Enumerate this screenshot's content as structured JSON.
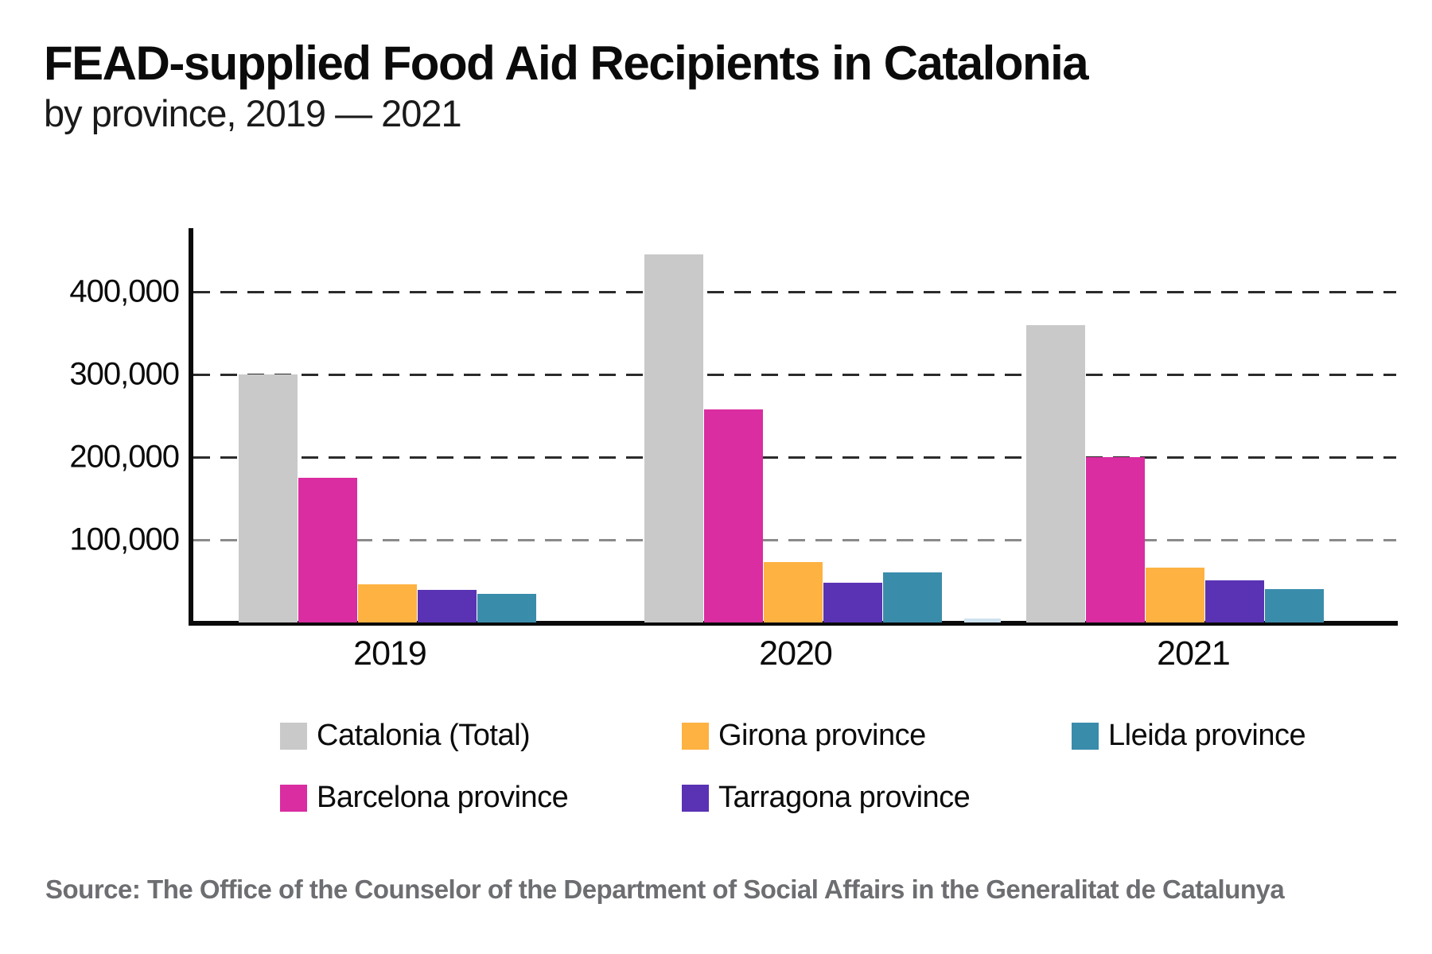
{
  "title": "FEAD-supplied Food Aid Recipients in Catalonia",
  "subtitle": "by province, 2019 — 2021",
  "source": "Source: The Office of the Counselor of the Department of Social Affairs in the Generalitat de Catalunya",
  "colors": {
    "catalonia_total": "#c9c9c9",
    "barcelona": "#d92da1",
    "girona": "#fdb242",
    "tarragona": "#5a32b4",
    "lleida": "#3a8cab",
    "axis": "#0a0a0a",
    "grid_dark": "#2b2b2b",
    "grid_light": "#8a8a8a",
    "source_text": "#6d6e71"
  },
  "chart_data": {
    "type": "bar",
    "categories": [
      "2019",
      "2020",
      "2021"
    ],
    "series": [
      {
        "name": "Catalonia (Total)",
        "color": "#c9c9c9",
        "values": [
          300000,
          445000,
          360000
        ]
      },
      {
        "name": "Barcelona province",
        "color": "#d92da1",
        "values": [
          175000,
          258000,
          200000
        ]
      },
      {
        "name": "Girona province",
        "color": "#fdb242",
        "values": [
          46000,
          73000,
          66000
        ]
      },
      {
        "name": "Tarragona province",
        "color": "#5a32b4",
        "values": [
          39000,
          48000,
          51000
        ]
      },
      {
        "name": "Lleida province",
        "color": "#3a8cab",
        "values": [
          35000,
          61000,
          40000
        ]
      }
    ],
    "y_ticks": [
      {
        "value": 100000,
        "label": "100,000",
        "grid_color": "#8a8a8a"
      },
      {
        "value": 200000,
        "label": "200,000",
        "grid_color": "#2b2b2b"
      },
      {
        "value": 300000,
        "label": "300,000",
        "grid_color": "#2b2b2b"
      },
      {
        "value": 400000,
        "label": "400,000",
        "grid_color": "#2b2b2b"
      }
    ],
    "ylim": [
      0,
      477000
    ],
    "grid": "dashed horizontal",
    "legend_position": "bottom",
    "artifact_sliver": {
      "note": "tiny unlabeled light-blue sliver bar rendered at the baseline between the 2020 and 2021 groups",
      "approx_value": 4000,
      "color": "#cfe2ef"
    }
  },
  "legend": {
    "items": [
      {
        "label": "Catalonia (Total)",
        "color": "#c9c9c9"
      },
      {
        "label": "Girona province",
        "color": "#fdb242"
      },
      {
        "label": "Lleida province",
        "color": "#3a8cab"
      },
      {
        "label": "Barcelona province",
        "color": "#d92da1"
      },
      {
        "label": "Tarragona province",
        "color": "#5a32b4"
      }
    ]
  }
}
